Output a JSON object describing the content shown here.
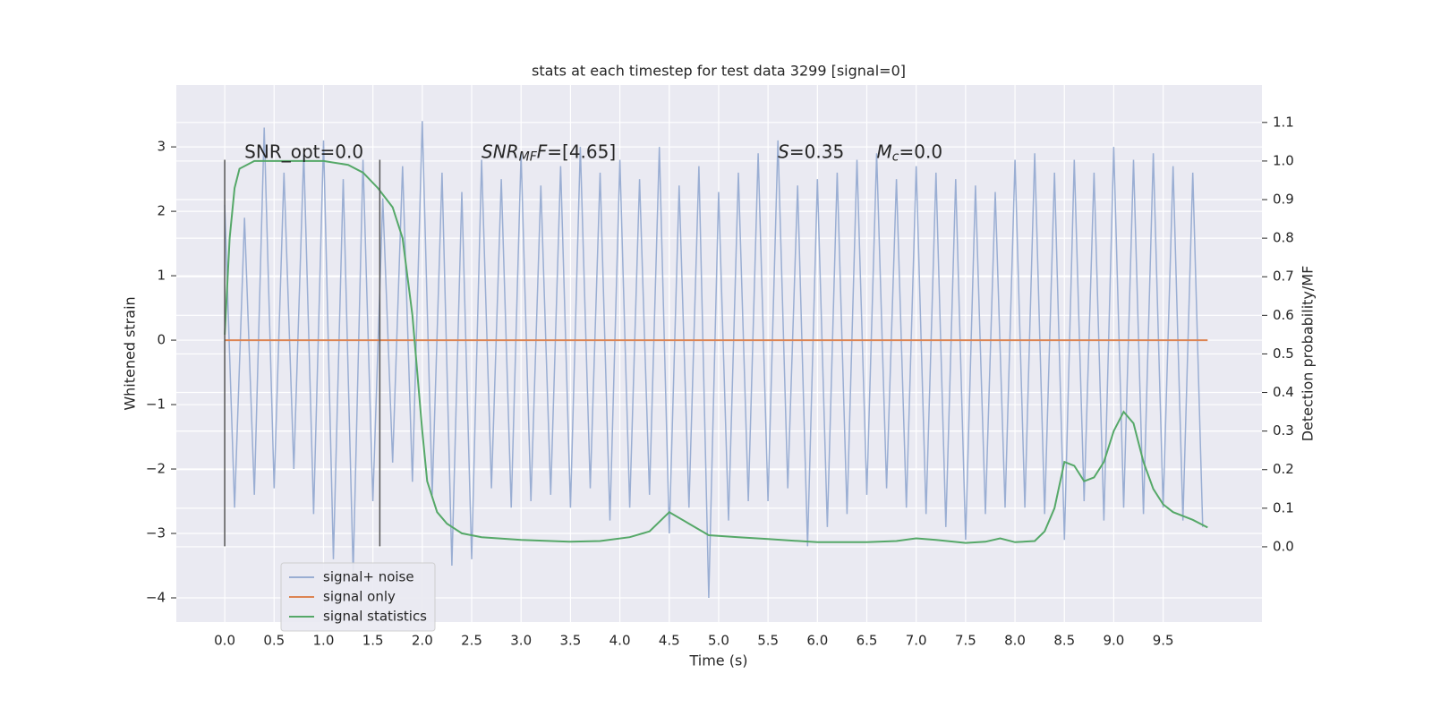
{
  "chart_data": {
    "type": "line",
    "title": "stats at each timestep for test data 3299 [signal=0]",
    "xlabel": "Time (s)",
    "ylabel": "Whitened strain",
    "y2label": "Detection probability/MF",
    "xlim": [
      -0.49,
      10.5
    ],
    "xticks": [
      {
        "value": 0,
        "label": "0.0"
      },
      0.5,
      {
        "value": 1,
        "label": "1.0"
      },
      1.5,
      {
        "value": 2,
        "label": "2.0"
      },
      2.5,
      {
        "value": 3,
        "label": "3.0"
      },
      3.5,
      {
        "value": 4,
        "label": "4.0"
      },
      4.5,
      {
        "value": 5,
        "label": "5.0"
      },
      5.5,
      {
        "value": 6,
        "label": "6.0"
      },
      6.5,
      {
        "value": 7,
        "label": "7.0"
      },
      7.5,
      {
        "value": 8,
        "label": "8.0"
      },
      8.5,
      {
        "value": 9,
        "label": "9.0"
      },
      9.5
    ],
    "ylim": [
      -4.375,
      3.96
    ],
    "yticks": [
      {
        "value": -4,
        "label": "−4"
      },
      {
        "value": -3,
        "label": "−3"
      },
      {
        "value": -2,
        "label": "−2"
      },
      {
        "value": -1,
        "label": "−1"
      },
      0,
      1,
      2,
      3
    ],
    "y2lim": [
      -0.195,
      1.197
    ],
    "y2ticks": [
      {
        "value": 0,
        "label": "0.0"
      },
      0.1,
      0.2,
      0.3,
      0.4,
      0.5,
      0.6,
      0.7,
      0.8,
      0.9,
      {
        "value": 1,
        "label": "1.0"
      },
      1.1
    ],
    "grid": true,
    "legend": "lower left",
    "series": [
      {
        "name": "signal+ noise",
        "color": "#9aaed3",
        "x": [
          0,
          0.1,
          0.2,
          0.3,
          0.4,
          0.5,
          0.6,
          0.7,
          0.8,
          0.9,
          1,
          1.1,
          1.2,
          1.3,
          1.4,
          1.5,
          1.6,
          1.7,
          1.8,
          1.9,
          2,
          2.1,
          2.2,
          2.3,
          2.4,
          2.5,
          2.6,
          2.7,
          2.8,
          2.9,
          3,
          3.1,
          3.2,
          3.3,
          3.4,
          3.5,
          3.6,
          3.7,
          3.8,
          3.9,
          4,
          4.1,
          4.2,
          4.3,
          4.4,
          4.5,
          4.6,
          4.7,
          4.8,
          4.9,
          5,
          5.1,
          5.2,
          5.3,
          5.4,
          5.5,
          5.6,
          5.7,
          5.8,
          5.9,
          6,
          6.1,
          6.2,
          6.3,
          6.4,
          6.5,
          6.6,
          6.7,
          6.8,
          6.9,
          7,
          7.1,
          7.2,
          7.3,
          7.4,
          7.5,
          7.6,
          7.7,
          7.8,
          7.9,
          8,
          8.1,
          8.2,
          8.3,
          8.4,
          8.5,
          8.6,
          8.7,
          8.8,
          8.9,
          9,
          9.1,
          9.2,
          9.3,
          9.4,
          9.5,
          9.6,
          9.7,
          9.8,
          9.9
        ],
        "values": [
          2.1,
          -2.6,
          1.9,
          -2.4,
          3.3,
          -2.3,
          2.6,
          -2.0,
          2.9,
          -2.7,
          3.1,
          -3.4,
          2.5,
          -3.6,
          2.8,
          -2.5,
          2.2,
          -1.9,
          2.7,
          -2.2,
          3.4,
          -2.4,
          2.6,
          -3.5,
          2.3,
          -3.4,
          2.8,
          -2.3,
          2.5,
          -2.6,
          2.9,
          -2.5,
          2.4,
          -2.4,
          2.7,
          -2.6,
          3.0,
          -2.3,
          2.6,
          -2.8,
          2.8,
          -2.6,
          2.5,
          -2.4,
          3.0,
          -3.0,
          2.4,
          -2.6,
          2.7,
          -4.0,
          2.3,
          -2.8,
          2.6,
          -2.5,
          2.9,
          -2.5,
          3.1,
          -2.3,
          2.4,
          -3.2,
          2.5,
          -2.9,
          2.6,
          -2.7,
          2.8,
          -2.4,
          2.9,
          -2.3,
          2.5,
          -2.6,
          2.7,
          -2.7,
          2.6,
          -2.9,
          2.5,
          -3.1,
          2.4,
          -2.7,
          2.3,
          -2.6,
          2.8,
          -2.6,
          2.9,
          -2.7,
          2.6,
          -3.1,
          2.8,
          -2.5,
          2.6,
          -2.8,
          3.0,
          -2.6,
          2.8,
          -2.7,
          2.9,
          -2.6,
          2.7,
          -2.8,
          2.6,
          -2.9
        ]
      },
      {
        "name": "signal only",
        "color": "#dd8452",
        "x": [
          0,
          9.95
        ],
        "values": [
          0,
          0
        ]
      },
      {
        "name": "signal statistics",
        "color": "#55a868",
        "axis": "y2",
        "x": [
          0,
          0.05,
          0.1,
          0.15,
          0.3,
          0.5,
          0.75,
          1.0,
          1.25,
          1.4,
          1.55,
          1.7,
          1.8,
          1.9,
          2.0,
          2.05,
          2.15,
          2.25,
          2.4,
          2.6,
          3.0,
          3.5,
          3.8,
          4.1,
          4.3,
          4.5,
          4.7,
          4.9,
          5.2,
          5.5,
          6.0,
          6.5,
          6.8,
          7.0,
          7.2,
          7.5,
          7.7,
          7.85,
          8.0,
          8.2,
          8.3,
          8.4,
          8.5,
          8.6,
          8.7,
          8.8,
          8.9,
          9.0,
          9.1,
          9.2,
          9.3,
          9.4,
          9.5,
          9.6,
          9.8,
          9.95
        ],
        "values": [
          0.55,
          0.8,
          0.93,
          0.98,
          1.0,
          1.0,
          1.0,
          1.0,
          0.99,
          0.97,
          0.93,
          0.88,
          0.8,
          0.6,
          0.3,
          0.17,
          0.09,
          0.06,
          0.035,
          0.025,
          0.018,
          0.013,
          0.015,
          0.025,
          0.04,
          0.09,
          0.06,
          0.03,
          0.025,
          0.02,
          0.012,
          0.012,
          0.015,
          0.022,
          0.018,
          0.01,
          0.013,
          0.022,
          0.012,
          0.015,
          0.04,
          0.1,
          0.22,
          0.21,
          0.17,
          0.18,
          0.22,
          0.3,
          0.35,
          0.32,
          0.22,
          0.15,
          0.11,
          0.09,
          0.07,
          0.05
        ]
      }
    ],
    "vlines": [
      {
        "x": 0,
        "ymin": -3.2,
        "ymax": 2.8,
        "color": "#555555"
      },
      {
        "x": 1.57,
        "ymin": -3.2,
        "ymax": 2.8,
        "color": "#555555"
      }
    ],
    "annotations": [
      {
        "x": 0.2,
        "y": 2.8,
        "parts": [
          {
            "t": "SNR_opt=0.0"
          }
        ]
      },
      {
        "x": 2.6,
        "y": 2.8,
        "parts": [
          {
            "t": "SNR",
            "style": "italic"
          },
          {
            "t": "MF",
            "style": "sub"
          },
          {
            "t": "F",
            "style": "italic"
          },
          {
            "t": "=[4.65]"
          }
        ]
      },
      {
        "x": 5.6,
        "y": 2.8,
        "parts": [
          {
            "t": "S",
            "style": "italic"
          },
          {
            "t": "=0.35"
          }
        ]
      },
      {
        "x": 6.6,
        "y": 2.8,
        "parts": [
          {
            "t": "M",
            "style": "italic"
          },
          {
            "t": "c",
            "style": "sub"
          },
          {
            "t": "=0.0"
          }
        ]
      }
    ]
  }
}
